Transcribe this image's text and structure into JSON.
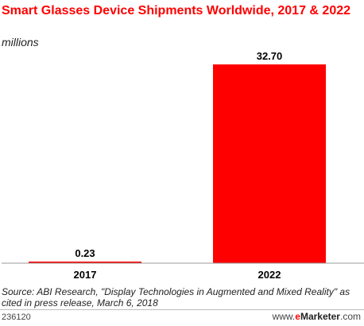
{
  "chart_data": {
    "type": "bar",
    "title": "Smart Glasses Device Shipments Worldwide, 2017 & 2022",
    "subtitle": "millions",
    "categories": [
      "2017",
      "2022"
    ],
    "values": [
      0.23,
      32.7
    ],
    "value_labels": [
      "0.23",
      "32.70"
    ],
    "ylim": [
      0,
      32.7
    ],
    "bar_color": "#ff0000",
    "grid": false,
    "legend": "none"
  },
  "source": "Source: ABI Research, \"Display Technologies in Augmented and Mixed Reality\" as cited in press release, March 6, 2018",
  "chart_id": "236120",
  "brand": {
    "prefix": "www.",
    "e": "e",
    "name": "Marketer",
    "suffix": ".com"
  }
}
